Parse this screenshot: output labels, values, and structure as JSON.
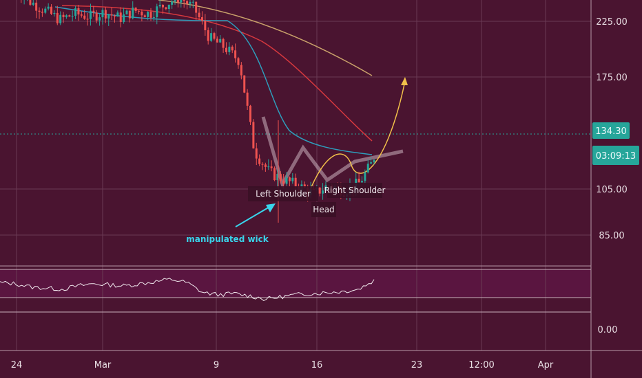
{
  "chart_data": [
    {
      "type": "candlestick",
      "y_axis_ticks": [
        "225.00",
        "175.00",
        "105.00",
        "85.00"
      ],
      "x_axis_ticks": [
        "24",
        "Mar",
        "9",
        "16",
        "23",
        "12:00",
        "Apr"
      ],
      "current_price": "134.30",
      "countdown": "03:09:13",
      "annotations": {
        "left_shoulder": "Left Shoulder",
        "head": "Head",
        "right_shoulder": "Right Shoulder",
        "wick_note": "manipulated wick"
      },
      "candles": [
        {
          "x": "24",
          "close": 247
        },
        {
          "x": "25",
          "close": 238
        },
        {
          "x": "26",
          "close": 232
        },
        {
          "x": "27",
          "close": 226
        },
        {
          "x": "28",
          "close": 230
        },
        {
          "x": "Mar",
          "close": 228
        },
        {
          "x": "2",
          "close": 231
        },
        {
          "x": "3",
          "close": 227
        },
        {
          "x": "4",
          "close": 232
        },
        {
          "x": "5",
          "close": 230
        },
        {
          "x": "6",
          "close": 236
        },
        {
          "x": "7",
          "close": 241
        },
        {
          "x": "8",
          "close": 233
        },
        {
          "x": "9",
          "close": 214
        },
        {
          "x": "10",
          "close": 208
        },
        {
          "x": "11",
          "close": 199
        },
        {
          "x": "12",
          "close": 140
        },
        {
          "x": "13",
          "close": 126
        },
        {
          "x": "14",
          "close": 121
        },
        {
          "x": "15",
          "close": 117
        },
        {
          "x": "16",
          "close": 112
        },
        {
          "x": "17",
          "close": 118
        },
        {
          "x": "18",
          "close": 114
        },
        {
          "x": "19",
          "close": 119
        },
        {
          "x": "20",
          "close": 134.3
        }
      ],
      "grid": true,
      "colors": {
        "background": "#4a1430",
        "up": "#26a69a",
        "down": "#ef5350",
        "ma_fast": "#2e9dbb",
        "ma_mid": "#d6383e",
        "ma_slow": "#c8a06a",
        "projection": "#f1c04a",
        "current_price": "#26a69a",
        "wick_arrow": "#39d5ec",
        "rsi_band": "#5a1540"
      }
    },
    {
      "type": "line",
      "series": [
        {
          "values": [
            58,
            57,
            54,
            53,
            52,
            55,
            57,
            56,
            55,
            57,
            59,
            61,
            58,
            49,
            47,
            48,
            46,
            43,
            45,
            47,
            48,
            49,
            50,
            52,
            60
          ]
        }
      ],
      "y_axis_ticks": [
        "0.00"
      ]
    }
  ]
}
